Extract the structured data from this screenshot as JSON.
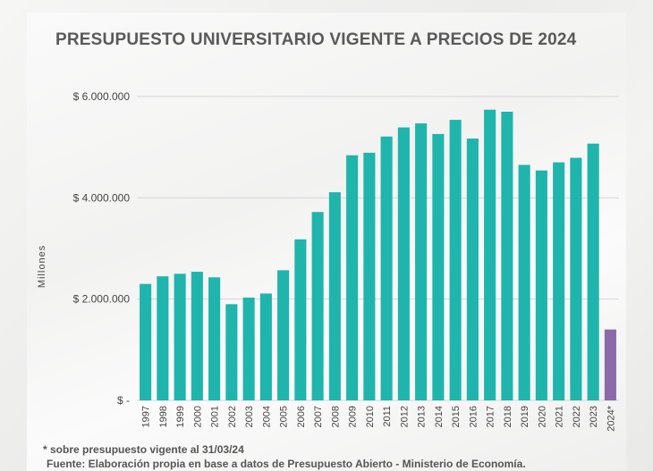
{
  "title": "PRESUPUESTO UNIVERSITARIO VIGENTE A PRECIOS DE  2024",
  "footnote": "* sobre presupuesto vigente al 31/03/24",
  "source": "Fuente: Elaboración propia en base a datos de Presupuesto Abierto - Ministerio de Economía.",
  "colors": {
    "bar": "#1fb5ac",
    "highlight": "#8a6aa8",
    "grid": "#d6d6d6",
    "text": "#444444"
  },
  "chart_data": {
    "type": "bar",
    "title": "PRESUPUESTO UNIVERSITARIO VIGENTE A PRECIOS DE  2024",
    "ylabel": "Millones",
    "xlabel": "",
    "ylim": [
      0,
      6000000
    ],
    "yticks": [
      0,
      2000000,
      4000000,
      6000000
    ],
    "ytick_labels": [
      "$ -",
      "$ 2.000.000",
      "$ 4.000.000",
      "$ 6.000.000"
    ],
    "grid": true,
    "categories": [
      "1997",
      "1998",
      "1999",
      "2000",
      "2001",
      "2002",
      "2003",
      "2004",
      "2005",
      "2006",
      "2007",
      "2008",
      "2009",
      "2010",
      "2011",
      "2012",
      "2013",
      "2014",
      "2015",
      "2016",
      "2017",
      "2018",
      "2019",
      "2020",
      "2021",
      "2022",
      "2023",
      "2024*"
    ],
    "values": [
      2300000,
      2450000,
      2500000,
      2540000,
      2430000,
      1900000,
      2030000,
      2110000,
      2570000,
      3180000,
      3720000,
      4110000,
      4840000,
      4890000,
      5210000,
      5390000,
      5470000,
      5260000,
      5540000,
      5170000,
      5740000,
      5700000,
      4650000,
      4540000,
      4700000,
      4790000,
      5070000,
      1400000
    ],
    "highlight_categories": [
      "2024*"
    ]
  }
}
